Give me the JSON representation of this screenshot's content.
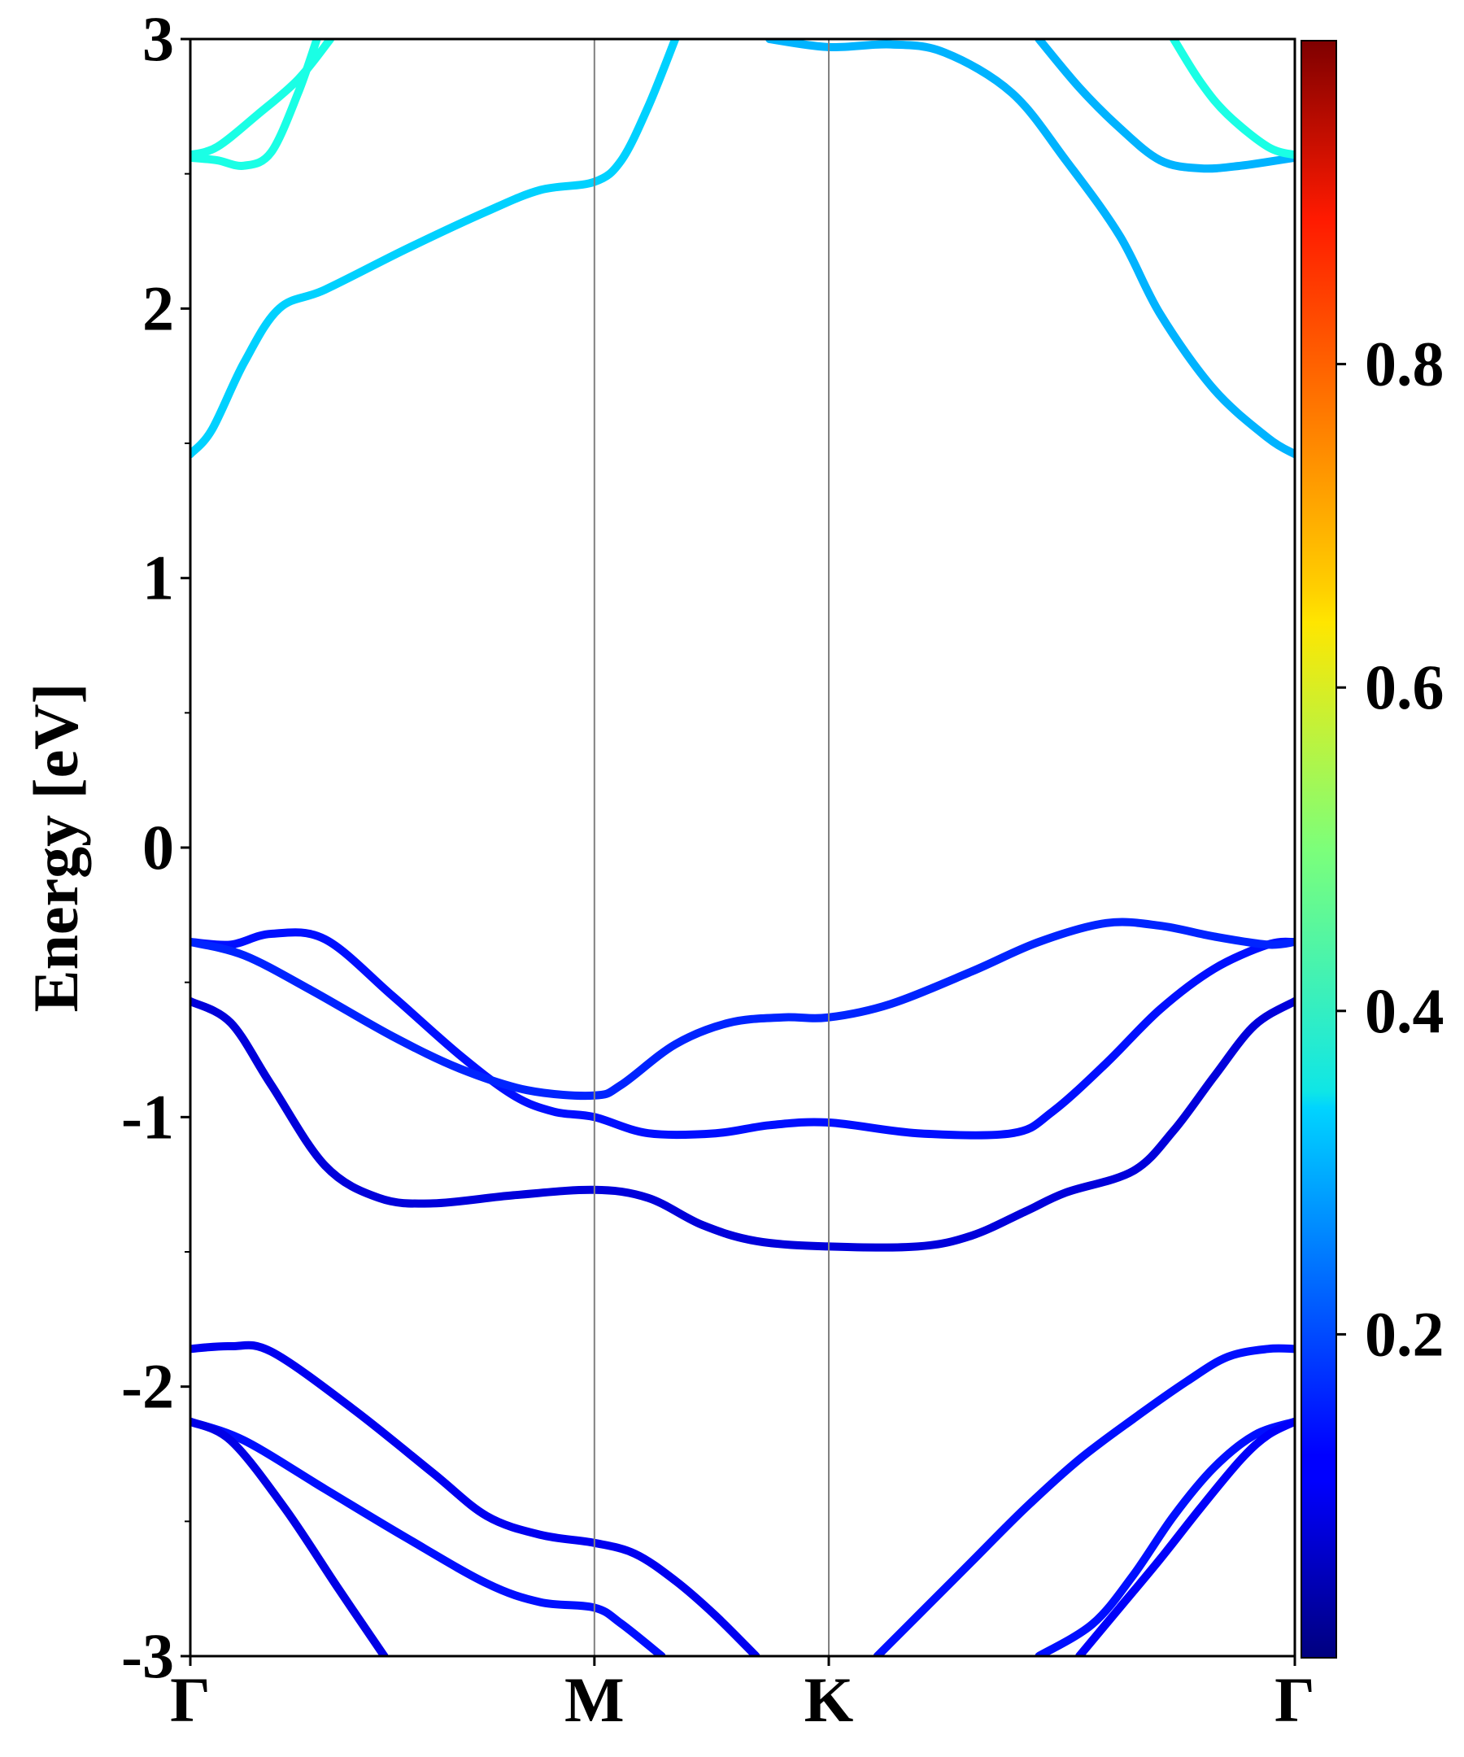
{
  "chart_data": {
    "type": "line",
    "title": "",
    "ylabel": "Energy [eV]",
    "xlabel": "",
    "ylim": [
      -3,
      3
    ],
    "yticks": [
      "3",
      "2",
      "1",
      "0",
      "-1",
      "-2",
      "-3"
    ],
    "ytick_values": [
      3,
      2,
      1,
      0,
      -1,
      -2,
      -3
    ],
    "xticks": [
      "Γ",
      "M",
      "K",
      "Γ"
    ],
    "xtick_values": [
      0,
      1.5,
      2.37,
      4.1
    ],
    "x_range": [
      0,
      4.1
    ],
    "grid": false,
    "colorbar": {
      "colormap": "jet",
      "range": [
        0,
        1
      ],
      "ticks": [
        "0.2",
        "0.4",
        "0.6",
        "0.8"
      ],
      "tick_values": [
        0.2,
        0.4,
        0.6,
        0.8
      ]
    },
    "series": [
      {
        "c": 0.33,
        "points": [
          [
            0,
            1.46
          ],
          [
            0.08,
            1.55
          ],
          [
            0.2,
            1.8
          ],
          [
            0.33,
            2.0
          ],
          [
            0.5,
            2.07
          ],
          [
            0.8,
            2.22
          ],
          [
            1.1,
            2.36
          ],
          [
            1.3,
            2.44
          ],
          [
            1.5,
            2.47
          ],
          [
            1.6,
            2.55
          ],
          [
            1.7,
            2.75
          ],
          [
            1.8,
            3.0
          ]
        ]
      },
      {
        "c": 0.4,
        "points": [
          [
            0,
            2.57
          ],
          [
            0.1,
            2.6
          ],
          [
            0.25,
            2.72
          ],
          [
            0.4,
            2.85
          ],
          [
            0.52,
            3.0
          ]
        ]
      },
      {
        "c": 0.4,
        "points": [
          [
            0,
            2.56
          ],
          [
            0.1,
            2.55
          ],
          [
            0.2,
            2.53
          ],
          [
            0.3,
            2.58
          ],
          [
            0.4,
            2.8
          ],
          [
            0.47,
            3.0
          ]
        ]
      },
      {
        "c": 0.3,
        "points": [
          [
            2.15,
            3.0
          ],
          [
            2.37,
            2.97
          ],
          [
            2.6,
            2.98
          ],
          [
            2.8,
            2.95
          ],
          [
            3.05,
            2.8
          ],
          [
            3.25,
            2.55
          ],
          [
            3.45,
            2.27
          ],
          [
            3.6,
            1.98
          ],
          [
            3.8,
            1.7
          ],
          [
            4.0,
            1.52
          ],
          [
            4.1,
            1.46
          ]
        ]
      },
      {
        "c": 0.3,
        "points": [
          [
            3.15,
            3.0
          ],
          [
            3.3,
            2.82
          ],
          [
            3.45,
            2.67
          ],
          [
            3.6,
            2.55
          ],
          [
            3.75,
            2.52
          ],
          [
            3.9,
            2.53
          ],
          [
            4.1,
            2.56
          ]
        ]
      },
      {
        "c": 0.4,
        "points": [
          [
            3.65,
            3.0
          ],
          [
            3.75,
            2.84
          ],
          [
            3.85,
            2.72
          ],
          [
            4.0,
            2.6
          ],
          [
            4.1,
            2.57
          ]
        ]
      },
      {
        "c": 0.14,
        "points": [
          [
            0,
            -0.35
          ],
          [
            0.15,
            -0.36
          ],
          [
            0.3,
            -0.32
          ],
          [
            0.5,
            -0.34
          ],
          [
            0.75,
            -0.55
          ],
          [
            1.0,
            -0.77
          ],
          [
            1.2,
            -0.92
          ],
          [
            1.35,
            -0.98
          ],
          [
            1.5,
            -1.0
          ],
          [
            1.7,
            -1.06
          ],
          [
            1.95,
            -1.06
          ],
          [
            2.15,
            -1.03
          ],
          [
            2.37,
            -1.02
          ],
          [
            2.7,
            -1.06
          ],
          [
            3.05,
            -1.06
          ],
          [
            3.2,
            -0.98
          ],
          [
            3.4,
            -0.8
          ],
          [
            3.6,
            -0.6
          ],
          [
            3.8,
            -0.45
          ],
          [
            4.0,
            -0.36
          ],
          [
            4.1,
            -0.35
          ]
        ]
      },
      {
        "c": 0.16,
        "points": [
          [
            0,
            -0.35
          ],
          [
            0.2,
            -0.4
          ],
          [
            0.45,
            -0.53
          ],
          [
            0.75,
            -0.7
          ],
          [
            1.0,
            -0.82
          ],
          [
            1.25,
            -0.9
          ],
          [
            1.5,
            -0.92
          ],
          [
            1.6,
            -0.88
          ],
          [
            1.8,
            -0.73
          ],
          [
            2.0,
            -0.65
          ],
          [
            2.2,
            -0.63
          ],
          [
            2.37,
            -0.63
          ],
          [
            2.6,
            -0.58
          ],
          [
            2.9,
            -0.46
          ],
          [
            3.15,
            -0.35
          ],
          [
            3.4,
            -0.28
          ],
          [
            3.6,
            -0.29
          ],
          [
            3.8,
            -0.33
          ],
          [
            4.0,
            -0.36
          ],
          [
            4.1,
            -0.35
          ]
        ]
      },
      {
        "c": 0.09,
        "points": [
          [
            0,
            -0.57
          ],
          [
            0.15,
            -0.65
          ],
          [
            0.3,
            -0.88
          ],
          [
            0.5,
            -1.18
          ],
          [
            0.7,
            -1.3
          ],
          [
            0.9,
            -1.32
          ],
          [
            1.2,
            -1.29
          ],
          [
            1.5,
            -1.27
          ],
          [
            1.7,
            -1.3
          ],
          [
            1.9,
            -1.4
          ],
          [
            2.1,
            -1.46
          ],
          [
            2.37,
            -1.48
          ],
          [
            2.7,
            -1.48
          ],
          [
            2.9,
            -1.44
          ],
          [
            3.1,
            -1.35
          ],
          [
            3.25,
            -1.28
          ],
          [
            3.5,
            -1.2
          ],
          [
            3.65,
            -1.05
          ],
          [
            3.8,
            -0.85
          ],
          [
            3.95,
            -0.66
          ],
          [
            4.1,
            -0.57
          ]
        ]
      },
      {
        "c": 0.11,
        "points": [
          [
            0,
            -1.86
          ],
          [
            0.15,
            -1.85
          ],
          [
            0.3,
            -1.87
          ],
          [
            0.6,
            -2.08
          ],
          [
            0.9,
            -2.32
          ],
          [
            1.1,
            -2.48
          ],
          [
            1.3,
            -2.55
          ],
          [
            1.5,
            -2.58
          ],
          [
            1.65,
            -2.62
          ],
          [
            1.8,
            -2.72
          ],
          [
            1.95,
            -2.85
          ],
          [
            2.1,
            -3.0
          ]
        ]
      },
      {
        "c": 0.14,
        "points": [
          [
            0,
            -2.13
          ],
          [
            0.2,
            -2.2
          ],
          [
            0.5,
            -2.38
          ],
          [
            0.8,
            -2.56
          ],
          [
            1.1,
            -2.73
          ],
          [
            1.3,
            -2.8
          ],
          [
            1.5,
            -2.82
          ],
          [
            1.6,
            -2.88
          ],
          [
            1.75,
            -3.0
          ]
        ]
      },
      {
        "c": 0.1,
        "points": [
          [
            0,
            -2.13
          ],
          [
            0.15,
            -2.2
          ],
          [
            0.35,
            -2.45
          ],
          [
            0.55,
            -2.75
          ],
          [
            0.72,
            -3.0
          ]
        ]
      },
      {
        "c": 0.14,
        "points": [
          [
            2.55,
            -3.0
          ],
          [
            2.7,
            -2.85
          ],
          [
            2.9,
            -2.65
          ],
          [
            3.1,
            -2.45
          ],
          [
            3.3,
            -2.27
          ],
          [
            3.5,
            -2.12
          ],
          [
            3.7,
            -1.98
          ],
          [
            3.85,
            -1.89
          ],
          [
            4.0,
            -1.86
          ],
          [
            4.1,
            -1.86
          ]
        ]
      },
      {
        "c": 0.14,
        "points": [
          [
            3.15,
            -3.0
          ],
          [
            3.35,
            -2.88
          ],
          [
            3.5,
            -2.7
          ],
          [
            3.65,
            -2.48
          ],
          [
            3.8,
            -2.3
          ],
          [
            3.95,
            -2.18
          ],
          [
            4.1,
            -2.13
          ]
        ]
      },
      {
        "c": 0.12,
        "points": [
          [
            3.3,
            -3.0
          ],
          [
            3.45,
            -2.82
          ],
          [
            3.6,
            -2.64
          ],
          [
            3.75,
            -2.45
          ],
          [
            3.9,
            -2.27
          ],
          [
            4.0,
            -2.18
          ],
          [
            4.1,
            -2.13
          ]
        ]
      }
    ]
  }
}
